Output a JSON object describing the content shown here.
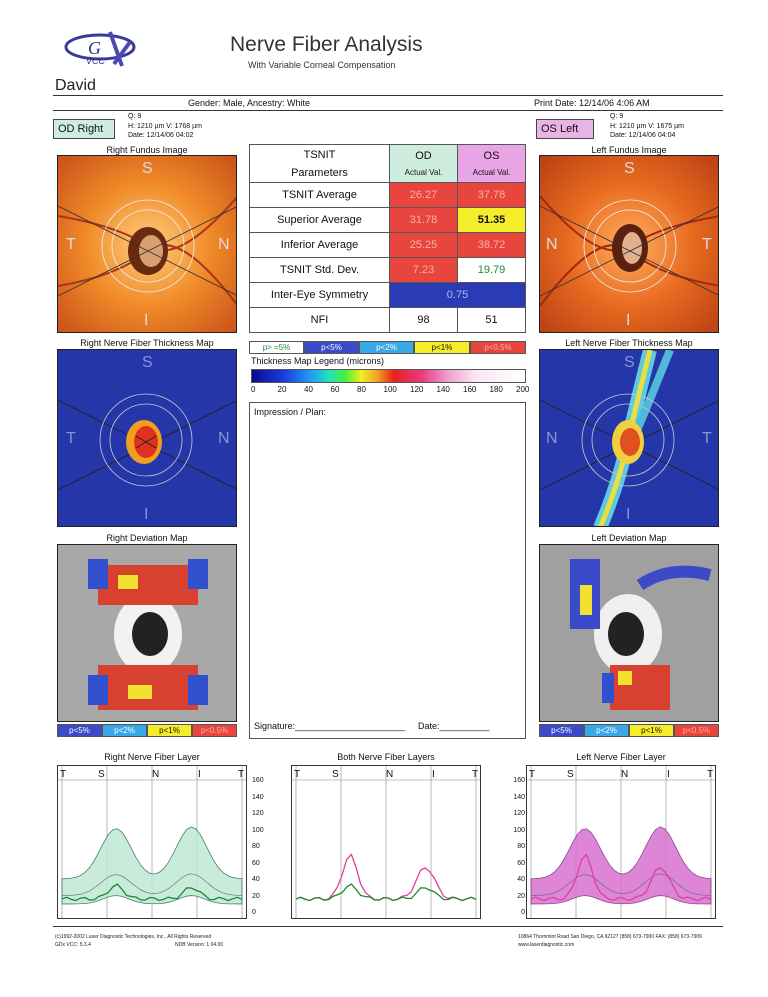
{
  "header": {
    "logo_text": "VCC",
    "title": "Nerve Fiber Analysis",
    "subtitle": "With Variable Corneal Compensation",
    "patient_name": "David",
    "gender_line": "Gender: Male, Ancestry: White",
    "print_date": "Print Date: 12/14/06 4:06 AM"
  },
  "od": {
    "tag": "OD  Right",
    "q": "Q: 9",
    "hv": "H: 1210 µm  V: 1768 µm",
    "date": "Date: 12/14/06 04:02",
    "fundus_label": "Right Fundus Image",
    "thickness_label": "Right Nerve Fiber Thickness Map",
    "deviation_label": "Right Deviation Map",
    "layer_label": "Right Nerve Fiber Layer",
    "fundus_letters": {
      "s": "S",
      "t": "T",
      "n": "N",
      "i": "I"
    }
  },
  "os": {
    "tag": "OS   Left",
    "q": "Q: 9",
    "hv": "H: 1210 µm  V: 1675 µm",
    "date": "Date: 12/14/06 04:04",
    "fundus_label": "Left Fundus Image",
    "thickness_label": "Left Nerve Fiber Thickness Map",
    "deviation_label": "Left Deviation Map",
    "layer_label": "Left Nerve Fiber Layer",
    "fundus_letters": {
      "s": "S",
      "t": "T",
      "n": "N",
      "i": "I"
    }
  },
  "table": {
    "h1": "TSNIT",
    "h2": "Parameters",
    "od_h": "OD",
    "os_h": "OS",
    "od_sub": "Actual Val.",
    "os_sub": "Actual Val.",
    "rows": [
      {
        "label": "TSNIT Average",
        "od": "26.27",
        "os": "37.78"
      },
      {
        "label": "Superior Average",
        "od": "31.78",
        "os": "51.35"
      },
      {
        "label": "Inferior Average",
        "od": "25.25",
        "os": "38.72"
      },
      {
        "label": "TSNIT Std. Dev.",
        "od": "7.23",
        "os": "19.79"
      }
    ],
    "symmetry_label": "Inter-Eye Symmetry",
    "symmetry_value": "0.75",
    "nfi_label": "NFI",
    "nfi_od": "98",
    "nfi_os": "51"
  },
  "legend": {
    "p_ge5": "p> =5%",
    "p_lt5": "p<5%",
    "p_lt2": "p<2%",
    "p_lt1": "p<1%",
    "p_lt05": "p<0.5%",
    "thickness_title": "Thickness Map Legend (microns)",
    "ticks": [
      "0",
      "20",
      "40",
      "60",
      "80",
      "100",
      "120",
      "140",
      "160",
      "180",
      "200"
    ]
  },
  "impression": {
    "title": "Impression / Plan:",
    "signature": "Signature:______________________",
    "date": "Date:__________"
  },
  "graphs": {
    "both_label": "Both Nerve Fiber Layers",
    "axis_letters": [
      "T",
      "S",
      "N",
      "I",
      "T"
    ],
    "y_ticks": [
      "160",
      "140",
      "120",
      "100",
      "80",
      "60",
      "40",
      "20",
      "0"
    ]
  },
  "footer": {
    "left1": "(c)1992-2002 Laser Diagnostic Technologies, Inc., All Rights Reserved",
    "left2": "GDx VCC: 5.3.4",
    "left3": "NDB Version: 1.04.00",
    "right1": "10864 Thornmint Road   San Diego, CA 92127   (858) 673-7900   FAX: (858) 673-7909",
    "right2": "www.laserdiagnostic.com"
  },
  "colors": {
    "od_green": "#cdeede",
    "os_pink": "#e8a6e6",
    "abnormal_red": "#e8453e",
    "borderline_yellow": "#f5ec2a"
  }
}
